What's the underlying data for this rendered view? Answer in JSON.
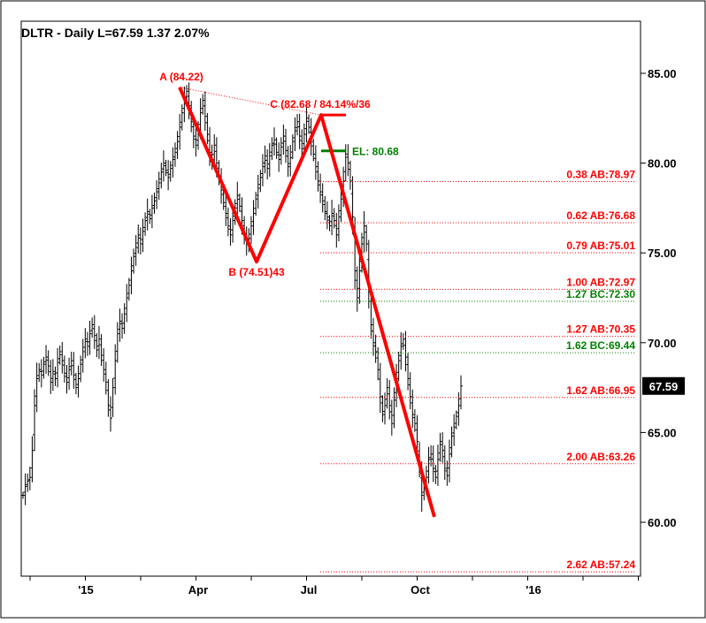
{
  "chart_data": {
    "type": "ohlc",
    "title": "DLTR - Daily  L=67.59  1.37  2.07%",
    "y_ticks": [
      60,
      65,
      70,
      75,
      80,
      85
    ],
    "y_tick_labels": [
      "60.00",
      "65.00",
      "70.00",
      "75.00",
      "80.00",
      "85.00"
    ],
    "ylim": [
      57.0,
      87.9
    ],
    "x_tick_labels": [
      "'15",
      "Apr",
      "Jul",
      "Oct",
      "'16"
    ],
    "last_price": 67.59,
    "last_price_label": "67.59",
    "abcd_pattern": {
      "color": "#ff0000",
      "points": [
        {
          "name": "A",
          "label": "A (84.22)",
          "value": 84.22
        },
        {
          "name": "B",
          "label": "B (74.51)43",
          "value": 74.51
        },
        {
          "name": "C",
          "label": "C (82.68 / 84.14%/36",
          "value": 82.68
        },
        {
          "name": "D",
          "label": "",
          "value": 60.3
        }
      ]
    },
    "entry_level": {
      "label": "EL: 80.68",
      "value": 80.68,
      "color": "#008000"
    },
    "fib_levels": [
      {
        "label": "0.38 AB:78.97",
        "value": 78.97,
        "color": "#ff0000"
      },
      {
        "label": "0.62 AB:76.68",
        "value": 76.68,
        "color": "#ff0000"
      },
      {
        "label": "0.79 AB:75.01",
        "value": 75.01,
        "color": "#ff0000"
      },
      {
        "label": "1.00 AB:72.97",
        "value": 72.97,
        "color": "#ff0000"
      },
      {
        "label": "1.27 BC:72.30",
        "value": 72.3,
        "color": "#008000"
      },
      {
        "label": "1.27 AB:70.35",
        "value": 70.35,
        "color": "#ff0000"
      },
      {
        "label": "1.62 BC:69.44",
        "value": 69.44,
        "color": "#008000"
      },
      {
        "label": "1.62 AB:66.95",
        "value": 66.95,
        "color": "#ff0000"
      },
      {
        "label": "2.00 AB:63.26",
        "value": 63.26,
        "color": "#ff0000"
      },
      {
        "label": "2.62 AB:57.24",
        "value": 57.24,
        "color": "#ff0000"
      }
    ],
    "price_series": [
      61.5,
      62.0,
      62.3,
      62.5,
      64.0,
      66.5,
      68.0,
      68.5,
      68.2,
      68.8,
      69.2,
      68.7,
      67.8,
      68.4,
      68.0,
      68.9,
      69.5,
      69.0,
      68.3,
      67.8,
      68.5,
      69.0,
      68.2,
      67.5,
      68.0,
      68.8,
      69.5,
      70.2,
      69.8,
      70.5,
      71.0,
      70.4,
      69.6,
      70.2,
      69.3,
      68.5,
      67.8,
      66.5,
      65.8,
      67.5,
      69.0,
      70.5,
      71.2,
      70.8,
      71.6,
      72.5,
      73.2,
      74.0,
      74.8,
      75.3,
      76.0,
      75.5,
      76.2,
      76.8,
      77.3,
      76.9,
      77.5,
      77.9,
      78.4,
      78.9,
      79.5,
      80.0,
      79.6,
      79.2,
      79.7,
      80.2,
      80.6,
      81.2,
      82.0,
      82.8,
      83.5,
      84.0,
      83.2,
      82.3,
      81.5,
      81.0,
      81.8,
      82.8,
      83.5,
      82.6,
      81.6,
      80.6,
      80.2,
      81.0,
      80.0,
      79.2,
      78.5,
      77.8,
      77.2,
      76.5,
      76.0,
      76.8,
      77.5,
      78.2,
      77.6,
      76.8,
      76.0,
      75.5,
      75.8,
      76.5,
      77.2,
      78.0,
      78.6,
      79.2,
      79.8,
      80.4,
      79.7,
      80.4,
      81.0,
      81.3,
      80.6,
      80.2,
      80.9,
      81.5,
      80.7,
      79.8,
      80.3,
      81.2,
      81.8,
      82.3,
      81.5,
      80.8,
      81.6,
      82.5,
      82.0,
      81.2,
      80.5,
      79.8,
      79.0,
      78.4,
      77.9,
      77.3,
      77.0,
      76.5,
      77.2,
      76.8,
      76.0,
      77.0,
      78.0,
      79.0,
      80.5,
      80.0,
      79.0,
      77.0,
      74.0,
      72.5,
      74.0,
      75.5,
      76.5,
      75.5,
      73.0,
      71.0,
      70.0,
      69.5,
      68.5,
      67.0,
      66.0,
      66.5,
      67.5,
      66.5,
      65.5,
      66.8,
      68.0,
      69.0,
      69.8,
      70.2,
      69.2,
      68.0,
      67.0,
      66.0,
      65.5,
      64.5,
      63.0,
      61.5,
      62.0,
      62.5,
      63.5,
      63.8,
      63.0,
      62.5,
      63.5,
      64.5,
      64.0,
      63.0,
      62.6,
      63.8,
      64.8,
      65.3,
      65.9,
      66.5,
      67.59
    ]
  }
}
